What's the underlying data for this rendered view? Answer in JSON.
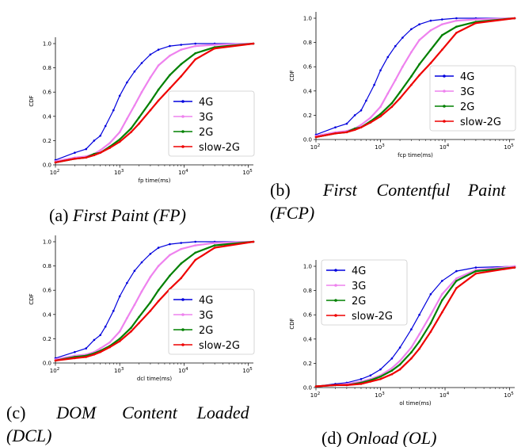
{
  "chart_data": [
    {
      "type": "line",
      "xscale": "log",
      "xlim": [
        100,
        120000
      ],
      "ylim": [
        0,
        1.0
      ],
      "xlabel": "fp time(ms)",
      "ylabel": "CDF",
      "xticks": [
        "10",
        "10",
        "10",
        "10"
      ],
      "xtick_exp": [
        "2",
        "3",
        "4",
        "5"
      ],
      "yticks": [
        "0.0",
        "0.2",
        "0.4",
        "0.6",
        "0.8",
        "1.0"
      ],
      "caption_label": "(a)",
      "caption_title": "First Paint (FP)",
      "legend": "right",
      "series": [
        {
          "name": "4G",
          "color": "#0000dd",
          "x": [
            100,
            200,
            300,
            400,
            500,
            600,
            800,
            1000,
            1300,
            1700,
            2200,
            3000,
            4000,
            6000,
            9000,
            15000,
            30000,
            120000
          ],
          "y": [
            0.04,
            0.1,
            0.13,
            0.2,
            0.24,
            0.32,
            0.45,
            0.57,
            0.68,
            0.77,
            0.84,
            0.91,
            0.95,
            0.98,
            0.99,
            1.0,
            1.0,
            1.0
          ]
        },
        {
          "name": "3G",
          "color": "#ee82ee",
          "x": [
            100,
            200,
            300,
            400,
            500,
            700,
            1000,
            1300,
            1700,
            2200,
            3000,
            4000,
            6000,
            9000,
            15000,
            30000,
            120000
          ],
          "y": [
            0.03,
            0.06,
            0.07,
            0.09,
            0.12,
            0.18,
            0.27,
            0.38,
            0.49,
            0.6,
            0.72,
            0.82,
            0.9,
            0.95,
            0.98,
            0.99,
            1.0
          ]
        },
        {
          "name": "2G",
          "color": "#008000",
          "x": [
            100,
            200,
            300,
            400,
            500,
            700,
            1000,
            1500,
            2000,
            3000,
            4000,
            6000,
            9000,
            15000,
            30000,
            120000
          ],
          "y": [
            0.02,
            0.05,
            0.06,
            0.09,
            0.1,
            0.15,
            0.21,
            0.3,
            0.39,
            0.52,
            0.62,
            0.74,
            0.83,
            0.92,
            0.97,
            1.0
          ]
        },
        {
          "name": "slow-2G",
          "color": "#ee0000",
          "x": [
            100,
            200,
            300,
            400,
            500,
            700,
            1000,
            1500,
            2000,
            3000,
            4000,
            6000,
            9000,
            15000,
            30000,
            120000
          ],
          "y": [
            0.02,
            0.05,
            0.06,
            0.08,
            0.1,
            0.14,
            0.19,
            0.27,
            0.34,
            0.45,
            0.53,
            0.63,
            0.73,
            0.87,
            0.96,
            1.0
          ]
        }
      ]
    },
    {
      "type": "line",
      "xscale": "log",
      "xlim": [
        100,
        120000
      ],
      "ylim": [
        0,
        1.0
      ],
      "xlabel": "fcp time(ms)",
      "ylabel": "CDF",
      "xticks": [
        "10",
        "10",
        "10",
        "10"
      ],
      "xtick_exp": [
        "2",
        "3",
        "4",
        "5"
      ],
      "yticks": [
        "0.0",
        "0.2",
        "0.4",
        "0.6",
        "0.8",
        "1.0"
      ],
      "caption_label": "(b)",
      "caption_title": "First Contentful Paint",
      "caption_title2": "(FCP)",
      "legend": "right",
      "series": [
        {
          "name": "4G",
          "color": "#0000dd",
          "x": [
            100,
            200,
            300,
            400,
            500,
            600,
            800,
            1000,
            1300,
            1700,
            2200,
            3000,
            4000,
            6000,
            9000,
            15000,
            30000,
            120000
          ],
          "y": [
            0.04,
            0.1,
            0.13,
            0.2,
            0.24,
            0.32,
            0.45,
            0.57,
            0.68,
            0.77,
            0.84,
            0.91,
            0.95,
            0.98,
            0.99,
            1.0,
            1.0,
            1.0
          ]
        },
        {
          "name": "3G",
          "color": "#ee82ee",
          "x": [
            100,
            200,
            300,
            400,
            500,
            700,
            1000,
            1300,
            1700,
            2200,
            3000,
            4000,
            6000,
            9000,
            15000,
            30000,
            120000
          ],
          "y": [
            0.03,
            0.06,
            0.07,
            0.09,
            0.12,
            0.18,
            0.27,
            0.38,
            0.49,
            0.6,
            0.72,
            0.82,
            0.9,
            0.95,
            0.98,
            0.99,
            1.0
          ]
        },
        {
          "name": "2G",
          "color": "#008000",
          "x": [
            100,
            200,
            300,
            400,
            500,
            700,
            1000,
            1500,
            2000,
            3000,
            4000,
            6000,
            9000,
            15000,
            30000,
            120000
          ],
          "y": [
            0.02,
            0.05,
            0.06,
            0.09,
            0.1,
            0.15,
            0.21,
            0.3,
            0.39,
            0.52,
            0.62,
            0.74,
            0.86,
            0.93,
            0.97,
            1.0
          ]
        },
        {
          "name": "slow-2G",
          "color": "#ee0000",
          "x": [
            100,
            200,
            300,
            400,
            500,
            700,
            1000,
            1500,
            2000,
            3000,
            4000,
            6000,
            9000,
            15000,
            30000,
            120000
          ],
          "y": [
            0.02,
            0.05,
            0.06,
            0.08,
            0.1,
            0.14,
            0.19,
            0.27,
            0.34,
            0.45,
            0.53,
            0.63,
            0.74,
            0.88,
            0.96,
            1.0
          ]
        }
      ]
    },
    {
      "type": "line",
      "xscale": "log",
      "xlim": [
        100,
        120000
      ],
      "ylim": [
        0,
        1.0
      ],
      "xlabel": "dcl time(ms)",
      "ylabel": "CDF",
      "xticks": [
        "10",
        "10",
        "10",
        "10"
      ],
      "xtick_exp": [
        "2",
        "3",
        "4",
        "5"
      ],
      "yticks": [
        "0.0",
        "0.2",
        "0.4",
        "0.6",
        "0.8",
        "1.0"
      ],
      "caption_label": "(c)",
      "caption_title": "DOM Content Loaded",
      "caption_title2": "(DCL)",
      "legend": "right",
      "series": [
        {
          "name": "4G",
          "color": "#0000dd",
          "x": [
            100,
            200,
            300,
            400,
            500,
            600,
            800,
            1000,
            1300,
            1700,
            2200,
            3000,
            4000,
            6000,
            9000,
            15000,
            30000,
            120000
          ],
          "y": [
            0.04,
            0.09,
            0.12,
            0.19,
            0.23,
            0.3,
            0.43,
            0.55,
            0.66,
            0.76,
            0.83,
            0.9,
            0.95,
            0.98,
            0.99,
            1.0,
            1.0,
            1.0
          ]
        },
        {
          "name": "3G",
          "color": "#ee82ee",
          "x": [
            100,
            200,
            300,
            400,
            500,
            700,
            1000,
            1300,
            1700,
            2200,
            3000,
            4000,
            6000,
            9000,
            15000,
            30000,
            120000
          ],
          "y": [
            0.03,
            0.06,
            0.07,
            0.09,
            0.12,
            0.17,
            0.26,
            0.37,
            0.48,
            0.59,
            0.71,
            0.8,
            0.89,
            0.94,
            0.97,
            0.99,
            1.0
          ]
        },
        {
          "name": "2G",
          "color": "#008000",
          "x": [
            100,
            200,
            300,
            400,
            500,
            700,
            1000,
            1500,
            2000,
            3000,
            4000,
            6000,
            9000,
            15000,
            30000,
            120000
          ],
          "y": [
            0.02,
            0.05,
            0.06,
            0.08,
            0.1,
            0.14,
            0.2,
            0.29,
            0.38,
            0.5,
            0.6,
            0.72,
            0.82,
            0.91,
            0.97,
            1.0
          ]
        },
        {
          "name": "slow-2G",
          "color": "#ee0000",
          "x": [
            100,
            200,
            300,
            400,
            500,
            700,
            1000,
            1500,
            2000,
            3000,
            4000,
            6000,
            9000,
            15000,
            30000,
            120000
          ],
          "y": [
            0.02,
            0.04,
            0.05,
            0.07,
            0.09,
            0.13,
            0.18,
            0.26,
            0.33,
            0.43,
            0.51,
            0.61,
            0.7,
            0.85,
            0.95,
            1.0
          ]
        }
      ]
    },
    {
      "type": "line",
      "xscale": "log",
      "xlim": [
        100,
        120000
      ],
      "ylim": [
        0,
        1.0
      ],
      "xlabel": "ol time(ms)",
      "ylabel": "CDF",
      "xticks": [
        "10",
        "10",
        "10",
        "10"
      ],
      "xtick_exp": [
        "2",
        "3",
        "4",
        "5"
      ],
      "yticks": [
        "0.0",
        "0.2",
        "0.4",
        "0.6",
        "0.8",
        "1.0"
      ],
      "caption_label": "(d)",
      "caption_title": "Onload (OL)",
      "legend": "upper-left",
      "series": [
        {
          "name": "4G",
          "color": "#0000dd",
          "x": [
            100,
            200,
            300,
            500,
            700,
            1000,
            1500,
            2000,
            3000,
            4000,
            6000,
            9000,
            15000,
            30000,
            120000
          ],
          "y": [
            0.01,
            0.03,
            0.04,
            0.07,
            0.1,
            0.15,
            0.24,
            0.33,
            0.48,
            0.6,
            0.77,
            0.88,
            0.96,
            0.99,
            1.0
          ]
        },
        {
          "name": "3G",
          "color": "#ee82ee",
          "x": [
            100,
            200,
            300,
            500,
            700,
            1000,
            1500,
            2000,
            3000,
            4000,
            6000,
            9000,
            15000,
            30000,
            120000
          ],
          "y": [
            0.01,
            0.02,
            0.03,
            0.05,
            0.07,
            0.1,
            0.16,
            0.22,
            0.33,
            0.44,
            0.6,
            0.77,
            0.9,
            0.97,
            1.0
          ]
        },
        {
          "name": "2G",
          "color": "#008000",
          "x": [
            100,
            200,
            300,
            500,
            700,
            1000,
            1500,
            2000,
            3000,
            4000,
            6000,
            9000,
            15000,
            30000,
            120000
          ],
          "y": [
            0.01,
            0.02,
            0.02,
            0.04,
            0.06,
            0.09,
            0.14,
            0.19,
            0.29,
            0.38,
            0.53,
            0.72,
            0.88,
            0.96,
            0.99
          ]
        },
        {
          "name": "slow-2G",
          "color": "#ee0000",
          "x": [
            100,
            200,
            300,
            500,
            700,
            1000,
            1500,
            2000,
            3000,
            4000,
            6000,
            9000,
            15000,
            30000,
            120000
          ],
          "y": [
            0.01,
            0.02,
            0.02,
            0.03,
            0.05,
            0.07,
            0.11,
            0.15,
            0.24,
            0.32,
            0.46,
            0.62,
            0.82,
            0.94,
            0.99
          ]
        }
      ]
    }
  ]
}
